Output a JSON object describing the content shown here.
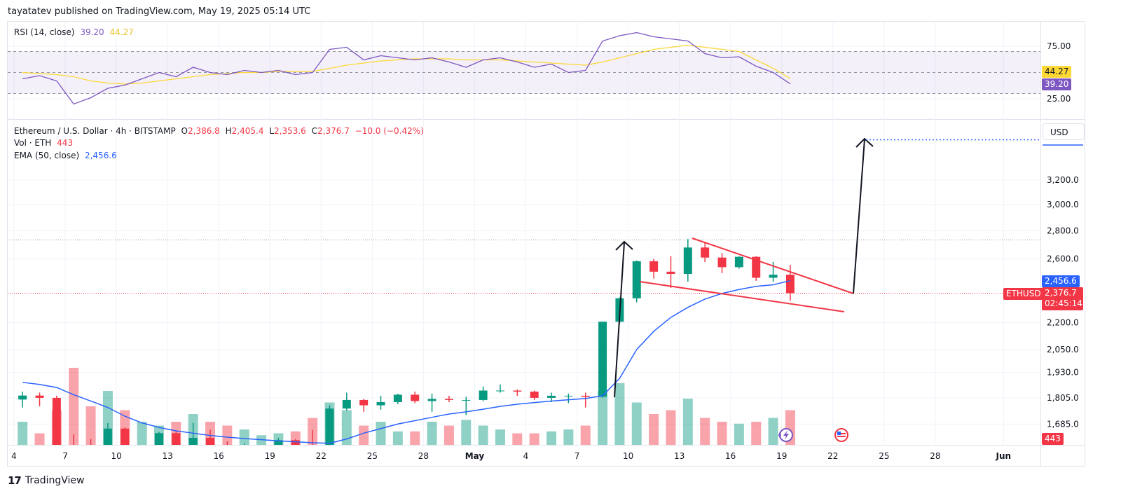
{
  "header": {
    "published": "tayatatev published on TradingView.com, May 19, 2025 05:14 UTC"
  },
  "rsi_legend": {
    "title": "RSI (14, close)",
    "rsi": "39.20",
    "ma": "44.27"
  },
  "main_legend": {
    "symbol": "Ethereum / U.S. Dollar · 4h · BITSTAMP",
    "o_label": "O",
    "o": "2,386.8",
    "h_label": "H",
    "h": "2,405.4",
    "l_label": "L",
    "l": "2,353.6",
    "c_label": "C",
    "c": "2,376.7",
    "change": "−10.0 (−0.42%)",
    "vol_label": "Vol · ETH",
    "vol": "443",
    "ema_label": "EMA (50, close)",
    "ema": "2,456.6"
  },
  "axis": {
    "currency": "USD",
    "rsi_badge": "39.20",
    "rsi_ma_badge": "44.27",
    "ema_badge": "2,456.6",
    "price_badge": "2,376.7",
    "countdown": "02:45:14",
    "symbol_badge": "ETHUSD",
    "vol_badge": "443"
  },
  "footer": {
    "brand": "TradingView"
  },
  "colors": {
    "up": "#089981",
    "down": "#f23645",
    "ema": "#2962ff",
    "rsi": "#7e57c2",
    "rsi_ma": "#fdd835",
    "drawing_red": "#f23645",
    "drawing_black": "#131722"
  },
  "icons": [
    "lightning-event-icon",
    "us-flag-event-icon"
  ],
  "chart_data": [
    {
      "type": "candlestick",
      "title": "Ethereum / U.S. Dollar · 4h · BITSTAMP",
      "y_scale": "log",
      "ylim": [
        1560,
        3700
      ],
      "y_ticks": [
        {
          "value": 3200,
          "label": "3,200.0"
        },
        {
          "value": 3000,
          "label": "3,000.0"
        },
        {
          "value": 2800,
          "label": "2,800.0"
        },
        {
          "value": 2600,
          "label": "2,600.0"
        },
        {
          "value": 2200,
          "label": "2,200.0"
        },
        {
          "value": 2050,
          "label": "2,050.0"
        },
        {
          "value": 1930,
          "label": "1,930.0"
        },
        {
          "value": 1805,
          "label": "1,805.0"
        },
        {
          "value": 1685,
          "label": "1,685.0"
        }
      ],
      "x_ticks": [
        {
          "label": "4",
          "date": "2025-04-04"
        },
        {
          "label": "7",
          "date": "2025-04-07"
        },
        {
          "label": "10",
          "date": "2025-04-10"
        },
        {
          "label": "13",
          "date": "2025-04-13"
        },
        {
          "label": "16",
          "date": "2025-04-16"
        },
        {
          "label": "19",
          "date": "2025-04-19"
        },
        {
          "label": "22",
          "date": "2025-04-22"
        },
        {
          "label": "25",
          "date": "2025-04-25"
        },
        {
          "label": "28",
          "date": "2025-04-28"
        },
        {
          "label": "May",
          "date": "2025-05-01"
        },
        {
          "label": "4",
          "date": "2025-05-04"
        },
        {
          "label": "7",
          "date": "2025-05-07"
        },
        {
          "label": "10",
          "date": "2025-05-10"
        },
        {
          "label": "13",
          "date": "2025-05-13"
        },
        {
          "label": "16",
          "date": "2025-05-16"
        },
        {
          "label": "19",
          "date": "2025-05-19"
        },
        {
          "label": "22",
          "date": "2025-05-22"
        },
        {
          "label": "25",
          "date": "2025-05-25"
        },
        {
          "label": "28",
          "date": "2025-05-28"
        },
        {
          "label": "Jun",
          "date": "2025-06-01"
        }
      ],
      "grid": true,
      "ohlcv_columns": [
        "date",
        "open",
        "high",
        "low",
        "close",
        "volume"
      ],
      "ohlcv": [
        [
          "2025-04-04",
          1797,
          1835,
          1760,
          1816,
          6000
        ],
        [
          "2025-04-05",
          1816,
          1830,
          1765,
          1805,
          3000
        ],
        [
          "2025-04-06",
          1805,
          1815,
          1540,
          1580,
          9000
        ],
        [
          "2025-04-07",
          1580,
          1640,
          1410,
          1555,
          20000
        ],
        [
          "2025-04-08",
          1555,
          1620,
          1450,
          1470,
          10000
        ],
        [
          "2025-04-09",
          1470,
          1690,
          1385,
          1665,
          14000
        ],
        [
          "2025-04-10",
          1665,
          1670,
          1480,
          1520,
          9000
        ],
        [
          "2025-04-11",
          1520,
          1580,
          1500,
          1565,
          6000
        ],
        [
          "2025-04-12",
          1565,
          1650,
          1545,
          1645,
          5000
        ],
        [
          "2025-04-13",
          1645,
          1655,
          1580,
          1595,
          6000
        ],
        [
          "2025-04-14",
          1595,
          1690,
          1590,
          1625,
          8000
        ],
        [
          "2025-04-15",
          1625,
          1660,
          1580,
          1590,
          6000
        ],
        [
          "2025-04-16",
          1590,
          1610,
          1560,
          1575,
          5000
        ],
        [
          "2025-04-17",
          1575,
          1600,
          1565,
          1585,
          4000
        ],
        [
          "2025-04-18",
          1585,
          1595,
          1575,
          1585,
          2500
        ],
        [
          "2025-04-19",
          1585,
          1625,
          1580,
          1615,
          3000
        ],
        [
          "2025-04-20",
          1615,
          1620,
          1570,
          1585,
          3500
        ],
        [
          "2025-04-21",
          1585,
          1660,
          1565,
          1580,
          7000
        ],
        [
          "2025-04-22",
          1580,
          1770,
          1570,
          1755,
          11000
        ],
        [
          "2025-04-23",
          1755,
          1830,
          1745,
          1795,
          9000
        ],
        [
          "2025-04-24",
          1795,
          1800,
          1740,
          1770,
          5000
        ],
        [
          "2025-04-25",
          1770,
          1815,
          1750,
          1785,
          6000
        ],
        [
          "2025-04-26",
          1785,
          1825,
          1775,
          1820,
          3500
        ],
        [
          "2025-04-27",
          1820,
          1835,
          1780,
          1790,
          3500
        ],
        [
          "2025-04-28",
          1790,
          1825,
          1740,
          1800,
          6000
        ],
        [
          "2025-04-29",
          1800,
          1815,
          1785,
          1795,
          5000
        ],
        [
          "2025-04-30",
          1795,
          1810,
          1725,
          1795,
          6500
        ],
        [
          "2025-05-01",
          1795,
          1860,
          1790,
          1840,
          5000
        ],
        [
          "2025-05-02",
          1840,
          1870,
          1830,
          1840,
          4000
        ],
        [
          "2025-05-03",
          1840,
          1845,
          1815,
          1835,
          3000
        ],
        [
          "2025-05-04",
          1835,
          1840,
          1795,
          1805,
          3000
        ],
        [
          "2025-05-05",
          1805,
          1830,
          1785,
          1815,
          3500
        ],
        [
          "2025-05-06",
          1815,
          1825,
          1780,
          1815,
          4000
        ],
        [
          "2025-05-07",
          1815,
          1830,
          1760,
          1810,
          5000
        ],
        [
          "2025-05-08",
          1810,
          2205,
          1805,
          2205,
          14000
        ],
        [
          "2025-05-09",
          2205,
          2350,
          2195,
          2345,
          16000
        ],
        [
          "2025-05-10",
          2345,
          2590,
          2320,
          2585,
          11000
        ],
        [
          "2025-05-11",
          2585,
          2600,
          2470,
          2515,
          8000
        ],
        [
          "2025-05-12",
          2515,
          2620,
          2410,
          2500,
          9000
        ],
        [
          "2025-05-13",
          2500,
          2740,
          2450,
          2680,
          12000
        ],
        [
          "2025-05-14",
          2680,
          2720,
          2580,
          2610,
          7000
        ],
        [
          "2025-05-15",
          2610,
          2640,
          2505,
          2545,
          6000
        ],
        [
          "2025-05-16",
          2545,
          2620,
          2535,
          2615,
          5500
        ],
        [
          "2025-05-17",
          2615,
          2620,
          2455,
          2475,
          6000
        ],
        [
          "2025-05-18",
          2475,
          2580,
          2450,
          2495,
          7000
        ],
        [
          "2025-05-19",
          2495,
          2560,
          2330,
          2376.7,
          9000
        ]
      ],
      "ema50": [
        1880,
        1870,
        1855,
        1820,
        1790,
        1760,
        1720,
        1690,
        1670,
        1655,
        1645,
        1635,
        1628,
        1622,
        1617,
        1612,
        1608,
        1604,
        1602,
        1620,
        1645,
        1665,
        1685,
        1700,
        1715,
        1730,
        1740,
        1752,
        1765,
        1775,
        1783,
        1790,
        1796,
        1802,
        1815,
        1900,
        2050,
        2150,
        2230,
        2290,
        2340,
        2375,
        2400,
        2420,
        2430,
        2456.6
      ],
      "last_price": 2376.7,
      "ema_last": 2456.6
    },
    {
      "type": "line",
      "title": "RSI (14, close)",
      "ylim": [
        15,
        95
      ],
      "y_ticks": [
        {
          "value": 75,
          "label": "75.00"
        },
        {
          "value": 25,
          "label": "25.00"
        }
      ],
      "bands": [
        70,
        50,
        30
      ],
      "series": [
        {
          "name": "RSI",
          "values": [
            44,
            47,
            42,
            20,
            26,
            35,
            38,
            44,
            50,
            46,
            55,
            50,
            48,
            52,
            50,
            52,
            48,
            50,
            72,
            74,
            62,
            66,
            64,
            62,
            64,
            60,
            55,
            62,
            64,
            60,
            55,
            58,
            50,
            52,
            80,
            85,
            88,
            84,
            82,
            80,
            68,
            64,
            65,
            56,
            50,
            39.2
          ]
        },
        {
          "name": "RSI MA",
          "values": [
            50,
            49,
            48,
            46,
            42,
            40,
            39,
            40,
            42,
            44,
            46,
            48,
            49,
            50,
            50,
            51,
            51,
            51,
            54,
            57,
            59,
            61,
            62,
            63,
            63,
            63,
            62,
            62,
            62,
            61,
            60,
            59,
            58,
            57,
            60,
            64,
            68,
            72,
            74,
            76,
            74,
            72,
            70,
            62,
            54,
            44.27
          ]
        }
      ]
    }
  ]
}
